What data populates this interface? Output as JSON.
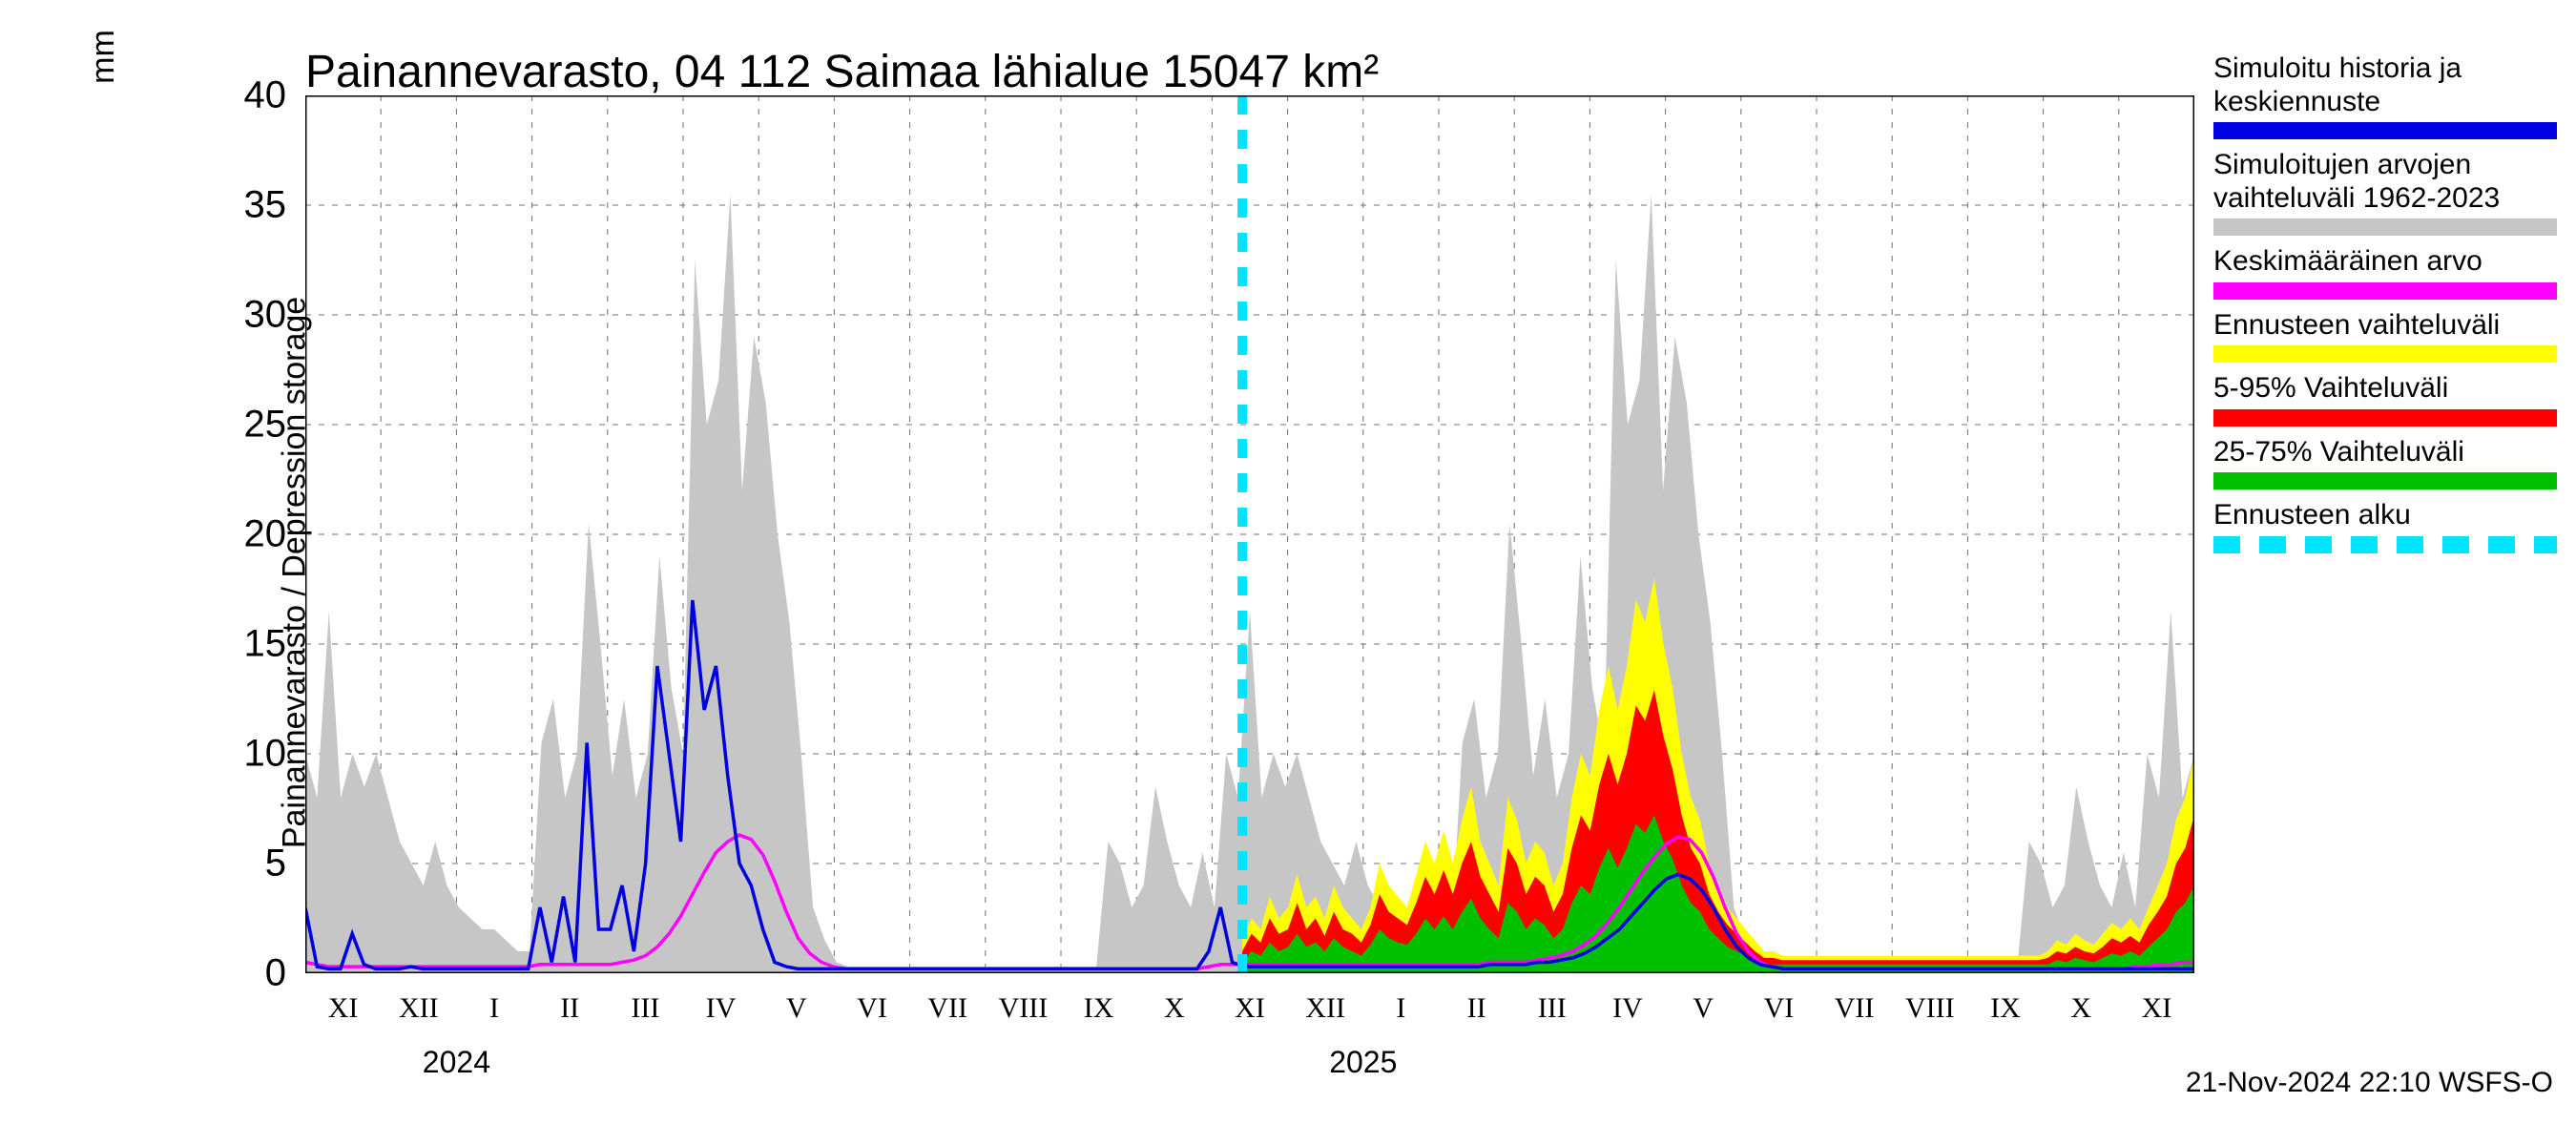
{
  "title": "Painannevarasto, 04 112 Saimaa lähialue 15047 km²",
  "y_axis": {
    "label": "Painannevarasto / Depression storage",
    "unit": "mm",
    "lim": [
      0,
      40
    ],
    "ticks": [
      0,
      5,
      10,
      15,
      20,
      25,
      30,
      35,
      40
    ],
    "label_fontsize": 34,
    "tick_fontsize": 40
  },
  "x_axis": {
    "tick_labels": [
      "XI",
      "XII",
      "I",
      "II",
      "III",
      "IV",
      "V",
      "VI",
      "VII",
      "VIII",
      "IX",
      "X",
      "XI",
      "XII",
      "I",
      "II",
      "III",
      "IV",
      "V",
      "VI",
      "VII",
      "VIII",
      "IX",
      "X",
      "XI"
    ],
    "years": [
      {
        "label": "2024",
        "under_tick_index": 2
      },
      {
        "label": "2025",
        "under_tick_index": 14
      }
    ],
    "tick_fontsize": 30
  },
  "colors": {
    "background": "#ffffff",
    "grid_major": "#707070",
    "grid_minor": "#707070",
    "axis": "#000000",
    "historical_range": "#c6c6c6",
    "simulated": "#0000e0",
    "mean": "#ff00ff",
    "forecast_full": "#ffff00",
    "forecast_5_95": "#ff0000",
    "forecast_25_75": "#00c000",
    "forecast_start": "#00e5ff"
  },
  "chart": {
    "type": "timeseries-envelope",
    "n_months": 25,
    "forecast_start_month_index": 12.4,
    "historical_range_upper": [
      10,
      8,
      16.5,
      8,
      10,
      8.5,
      10,
      8,
      6,
      5,
      4,
      6,
      4,
      3,
      2.5,
      2,
      2,
      1.5,
      1,
      1,
      10.5,
      12.5,
      8,
      10,
      20.5,
      15,
      9,
      12.5,
      8,
      10,
      19,
      13,
      10,
      32.5,
      25,
      27,
      35.5,
      22,
      29,
      26,
      20,
      16,
      10,
      3,
      1.5,
      0.5,
      0.3,
      0.3,
      0.3,
      0.3,
      0.3,
      0.3,
      0.3,
      0.3,
      0.3,
      0.3,
      0.3,
      0.3,
      0.3,
      0.3,
      0.3,
      0.3,
      0.3,
      0.3,
      0.3,
      0.3,
      0.3,
      0.3,
      6,
      5,
      3,
      4,
      8.5,
      6,
      4,
      3,
      5.5,
      3,
      10,
      8,
      16.5,
      8,
      10,
      8.5,
      10,
      8,
      6,
      5,
      4,
      6,
      4,
      3,
      2.5,
      2,
      2,
      1.5,
      1,
      1,
      10.5,
      12.5,
      8,
      10,
      20.5,
      15,
      9,
      12.5,
      8,
      10,
      19,
      13,
      10,
      32.5,
      25,
      27,
      35.5,
      22,
      29,
      26,
      20,
      16,
      10,
      3,
      1.5,
      0.5,
      0.3,
      0.3,
      0.3,
      0.3,
      0.3,
      0.3,
      0.3,
      0.3,
      0.3,
      0.3,
      0.3,
      0.3,
      0.3,
      0.3,
      0.3,
      0.3,
      0.3,
      0.3,
      0.3,
      0.3,
      0.3,
      0.3,
      6,
      5,
      3,
      4,
      8.5,
      6,
      4,
      3,
      5.5,
      3,
      10,
      8,
      16.5,
      8,
      10
    ],
    "historical_range_lower": [
      0,
      0,
      0,
      0,
      0,
      0,
      0,
      0,
      0,
      0,
      0,
      0,
      0,
      0,
      0,
      0,
      0,
      0,
      0,
      0,
      0,
      0,
      0,
      0,
      0,
      0,
      0,
      0,
      0,
      0,
      0,
      0,
      0,
      0,
      0,
      0,
      0,
      0,
      0,
      0,
      0,
      0,
      0,
      0,
      0,
      0,
      0,
      0,
      0,
      0,
      0,
      0,
      0,
      0,
      0,
      0,
      0,
      0,
      0,
      0,
      0,
      0,
      0,
      0,
      0,
      0,
      0,
      0,
      0,
      0,
      0,
      0,
      0,
      0,
      0,
      0,
      0,
      0,
      0,
      0,
      0,
      0,
      0,
      0,
      0,
      0,
      0,
      0,
      0,
      0,
      0,
      0,
      0,
      0,
      0,
      0,
      0,
      0,
      0,
      0,
      0,
      0,
      0,
      0,
      0,
      0,
      0,
      0,
      0,
      0,
      0,
      0,
      0,
      0,
      0,
      0,
      0,
      0,
      0,
      0,
      0,
      0,
      0,
      0,
      0,
      0,
      0,
      0,
      0,
      0,
      0,
      0,
      0,
      0,
      0,
      0,
      0,
      0,
      0,
      0,
      0,
      0,
      0,
      0,
      0,
      0,
      0,
      0,
      0,
      0,
      0,
      0,
      0,
      0,
      0,
      0,
      0,
      0,
      0,
      0,
      0,
      0
    ],
    "simulated_values": [
      3,
      0.3,
      0.2,
      0.2,
      1.8,
      0.4,
      0.2,
      0.2,
      0.2,
      0.3,
      0.2,
      0.2,
      0.2,
      0.2,
      0.2,
      0.2,
      0.2,
      0.2,
      0.2,
      0.2,
      3,
      0.5,
      3.5,
      0.5,
      10.5,
      2,
      2,
      4,
      1,
      5,
      14,
      10,
      6,
      17,
      12,
      14,
      9,
      5,
      4,
      2,
      0.5,
      0.3,
      0.2,
      0.2,
      0.2,
      0.2,
      0.2,
      0.2,
      0.2,
      0.2,
      0.2,
      0.2,
      0.2,
      0.2,
      0.2,
      0.2,
      0.2,
      0.2,
      0.2,
      0.2,
      0.2,
      0.2,
      0.2,
      0.2,
      0.2,
      0.2,
      0.2,
      0.2,
      0.2,
      0.2,
      0.2,
      0.2,
      0.2,
      0.2,
      0.2,
      0.2,
      0.2,
      1,
      3,
      0.5,
      0.3,
      0.3,
      0.3,
      0.3,
      0.3,
      0.3,
      0.3,
      0.3,
      0.3,
      0.3,
      0.3,
      0.3,
      0.3,
      0.3,
      0.3,
      0.3,
      0.3,
      0.3,
      0.3,
      0.3,
      0.3,
      0.4,
      0.4,
      0.4,
      0.4,
      0.5,
      0.5,
      0.6,
      0.7,
      0.9,
      1.2,
      1.6,
      2,
      2.6,
      3.2,
      3.8,
      4.3,
      4.5,
      4.3,
      3.8,
      3,
      2,
      1.2,
      0.7,
      0.4,
      0.3,
      0.2,
      0.2,
      0.2,
      0.2,
      0.2,
      0.2,
      0.2,
      0.2,
      0.2,
      0.2,
      0.2,
      0.2,
      0.2,
      0.2,
      0.2,
      0.2,
      0.2,
      0.2,
      0.2,
      0.2,
      0.2,
      0.2,
      0.2,
      0.2,
      0.2,
      0.2,
      0.2,
      0.2,
      0.2,
      0.2,
      0.2,
      0.2,
      0.2,
      0.2,
      0.2,
      0.2
    ],
    "mean_values": [
      0.5,
      0.4,
      0.3,
      0.3,
      0.3,
      0.3,
      0.3,
      0.3,
      0.3,
      0.3,
      0.3,
      0.3,
      0.3,
      0.3,
      0.3,
      0.3,
      0.3,
      0.3,
      0.3,
      0.3,
      0.4,
      0.4,
      0.4,
      0.4,
      0.4,
      0.4,
      0.4,
      0.5,
      0.6,
      0.8,
      1.2,
      1.8,
      2.6,
      3.6,
      4.6,
      5.5,
      6.0,
      6.3,
      6.1,
      5.4,
      4.2,
      2.8,
      1.6,
      0.9,
      0.5,
      0.3,
      0.2,
      0.2,
      0.2,
      0.2,
      0.2,
      0.2,
      0.2,
      0.2,
      0.2,
      0.2,
      0.2,
      0.2,
      0.2,
      0.2,
      0.2,
      0.2,
      0.2,
      0.2,
      0.2,
      0.2,
      0.2,
      0.2,
      0.2,
      0.2,
      0.2,
      0.2,
      0.2,
      0.2,
      0.2,
      0.2,
      0.2,
      0.3,
      0.4,
      0.4,
      0.4,
      0.4,
      0.4,
      0.4,
      0.4,
      0.4,
      0.4,
      0.4,
      0.4,
      0.4,
      0.4,
      0.4,
      0.4,
      0.4,
      0.4,
      0.4,
      0.4,
      0.4,
      0.4,
      0.4,
      0.4,
      0.5,
      0.5,
      0.5,
      0.5,
      0.6,
      0.7,
      0.8,
      1.0,
      1.3,
      1.7,
      2.3,
      3.0,
      3.8,
      4.6,
      5.3,
      5.9,
      6.2,
      6.1,
      5.5,
      4.4,
      3.0,
      1.8,
      1.0,
      0.5,
      0.3,
      0.2,
      0.2,
      0.2,
      0.2,
      0.2,
      0.2,
      0.2,
      0.2,
      0.2,
      0.2,
      0.2,
      0.2,
      0.2,
      0.2,
      0.2,
      0.2,
      0.2,
      0.2,
      0.2,
      0.2,
      0.2,
      0.2,
      0.2,
      0.2,
      0.2,
      0.2,
      0.2,
      0.2,
      0.2,
      0.2,
      0.3,
      0.3,
      0.4,
      0.4,
      0.5,
      0.5
    ],
    "forecast_full_upper": [
      1.5,
      2.5,
      2,
      3.5,
      2.5,
      3,
      4.5,
      3,
      3.5,
      2.5,
      4,
      3,
      2.5,
      2,
      3,
      5,
      4,
      3.5,
      3,
      4.5,
      6,
      5,
      6.5,
      5,
      7,
      8.5,
      6,
      5,
      4,
      8,
      7,
      5,
      6,
      5.5,
      4,
      5,
      8,
      10,
      9,
      12,
      14,
      12,
      14,
      17,
      16,
      18,
      15,
      13,
      10,
      8,
      7,
      5,
      4,
      3,
      2.5,
      2,
      1.5,
      1,
      1,
      0.8,
      0.8,
      0.8,
      0.8,
      0.8,
      0.8,
      0.8,
      0.8,
      0.8,
      0.8,
      0.8,
      0.8,
      0.8,
      0.8,
      0.8,
      0.8,
      0.8,
      0.8,
      0.8,
      0.8,
      0.8,
      0.8,
      0.8,
      0.8,
      0.8,
      0.8,
      0.8,
      0.8,
      0.8,
      1,
      1.5,
      1.3,
      1.8,
      1.5,
      1.3,
      1.8,
      2.3,
      2,
      2.5,
      2,
      3,
      4,
      5,
      7,
      8,
      10
    ],
    "forecast_5_95_upper": [
      1,
      1.8,
      1.4,
      2.5,
      1.8,
      2,
      3.2,
      2,
      2.5,
      1.7,
      2.8,
      2,
      1.8,
      1.4,
      2.2,
      3.6,
      2.8,
      2.5,
      2.2,
      3.2,
      4.4,
      3.6,
      4.7,
      3.6,
      5,
      6,
      4.4,
      3.6,
      2.8,
      5.7,
      5,
      3.6,
      4.4,
      4,
      2.8,
      3.6,
      5.7,
      7.2,
      6.5,
      8.6,
      10,
      8.6,
      10,
      12.2,
      11.5,
      12.9,
      10.8,
      9.3,
      7.2,
      5.7,
      5,
      3.6,
      2.8,
      2.2,
      1.8,
      1.4,
      1,
      0.7,
      0.7,
      0.6,
      0.6,
      0.6,
      0.6,
      0.6,
      0.6,
      0.6,
      0.6,
      0.6,
      0.6,
      0.6,
      0.6,
      0.6,
      0.6,
      0.6,
      0.6,
      0.6,
      0.6,
      0.6,
      0.6,
      0.6,
      0.6,
      0.6,
      0.6,
      0.6,
      0.6,
      0.6,
      0.6,
      0.6,
      0.7,
      1,
      0.9,
      1.2,
      1,
      0.9,
      1.2,
      1.6,
      1.4,
      1.7,
      1.4,
      2.2,
      2.8,
      3.5,
      5,
      5.7,
      7.2
    ],
    "forecast_25_75_upper": [
      0.5,
      1,
      0.8,
      1.4,
      1,
      1.2,
      1.8,
      1.2,
      1.4,
      1,
      1.6,
      1.2,
      1,
      0.8,
      1.3,
      2,
      1.6,
      1.4,
      1.3,
      1.8,
      2.5,
      2,
      2.6,
      2,
      2.8,
      3.4,
      2.5,
      2,
      1.6,
      3.2,
      2.8,
      2,
      2.5,
      2.2,
      1.6,
      2,
      3.2,
      4,
      3.6,
      4.8,
      5.7,
      4.8,
      5.7,
      6.8,
      6.4,
      7.2,
      6,
      5.2,
      4,
      3.2,
      2.8,
      2,
      1.6,
      1.2,
      1,
      0.8,
      0.6,
      0.4,
      0.4,
      0.4,
      0.4,
      0.4,
      0.4,
      0.4,
      0.4,
      0.4,
      0.4,
      0.4,
      0.4,
      0.4,
      0.4,
      0.4,
      0.4,
      0.4,
      0.4,
      0.4,
      0.4,
      0.4,
      0.4,
      0.4,
      0.4,
      0.4,
      0.4,
      0.4,
      0.4,
      0.4,
      0.4,
      0.4,
      0.4,
      0.6,
      0.5,
      0.7,
      0.6,
      0.5,
      0.7,
      0.9,
      0.8,
      1,
      0.8,
      1.2,
      1.6,
      2,
      2.8,
      3.2,
      4
    ],
    "forecast_lower": [
      0,
      0,
      0,
      0,
      0,
      0,
      0,
      0,
      0,
      0,
      0,
      0,
      0,
      0,
      0,
      0,
      0,
      0,
      0,
      0,
      0,
      0,
      0,
      0,
      0,
      0,
      0,
      0,
      0,
      0,
      0,
      0,
      0,
      0,
      0,
      0,
      0,
      0,
      0,
      0,
      0,
      0,
      0,
      0,
      0,
      0,
      0,
      0,
      0,
      0,
      0,
      0,
      0,
      0,
      0,
      0,
      0,
      0,
      0,
      0,
      0,
      0,
      0,
      0,
      0,
      0,
      0,
      0,
      0,
      0,
      0,
      0,
      0,
      0,
      0,
      0,
      0,
      0,
      0,
      0,
      0,
      0,
      0,
      0,
      0,
      0,
      0,
      0,
      0,
      0,
      0,
      0,
      0,
      0,
      0,
      0,
      0,
      0,
      0,
      0,
      0,
      0,
      0,
      0,
      0
    ],
    "line_widths": {
      "simulated": 3.5,
      "mean": 3.5,
      "forecast_start": 10
    },
    "forecast_start_dash": [
      20,
      16
    ]
  },
  "legend": {
    "items": [
      {
        "lines": [
          "Simuloitu historia ja",
          "keskiennuste"
        ],
        "swatch_type": "solid",
        "color_key": "simulated"
      },
      {
        "lines": [
          "Simuloitujen arvojen",
          "vaihteluväli 1962-2023"
        ],
        "swatch_type": "solid",
        "color_key": "historical_range"
      },
      {
        "lines": [
          "Keskimääräinen arvo"
        ],
        "swatch_type": "solid",
        "color_key": "mean"
      },
      {
        "lines": [
          "Ennusteen vaihteluväli"
        ],
        "swatch_type": "solid",
        "color_key": "forecast_full"
      },
      {
        "lines": [
          "5-95% Vaihteluväli"
        ],
        "swatch_type": "solid",
        "color_key": "forecast_5_95"
      },
      {
        "lines": [
          "25-75% Vaihteluväli"
        ],
        "swatch_type": "solid",
        "color_key": "forecast_25_75"
      },
      {
        "lines": [
          "Ennusteen alku"
        ],
        "swatch_type": "dashed",
        "color_key": "forecast_start"
      }
    ],
    "fontsize": 30
  },
  "footer": "21-Nov-2024 22:10 WSFS-O"
}
